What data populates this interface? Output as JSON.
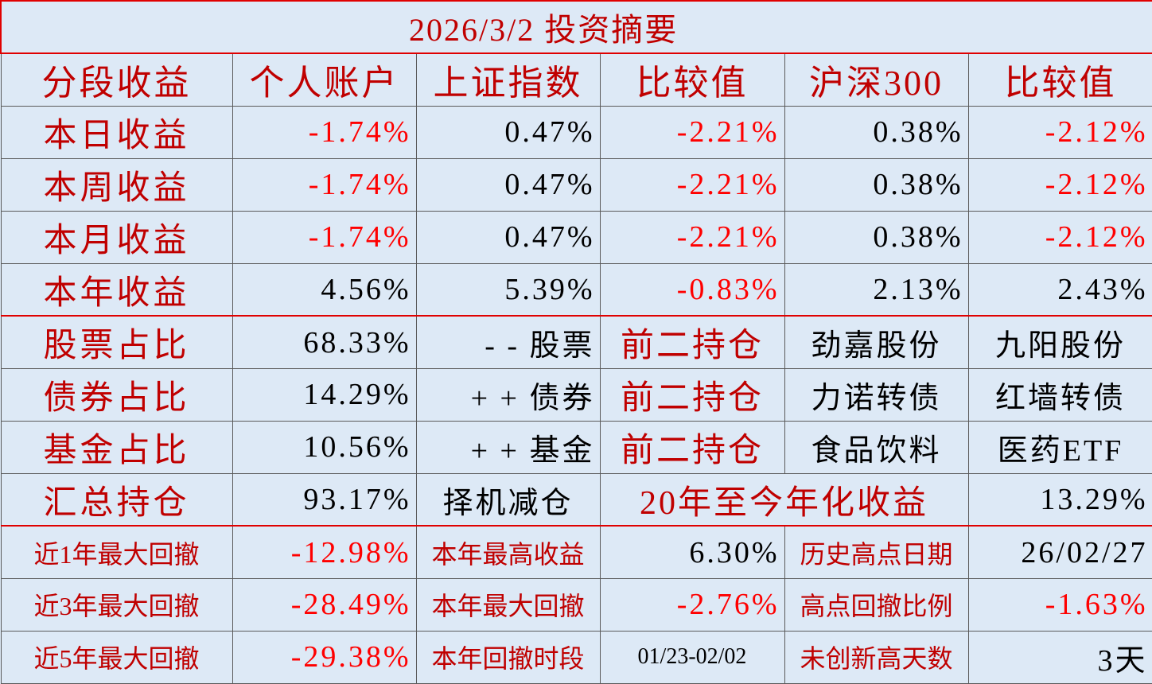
{
  "title": "2026/3/2  投资摘要",
  "table": {
    "header": [
      "分段收益",
      "个人账户",
      "上证指数",
      "比较值",
      "沪深300",
      "比较值"
    ],
    "rows": [
      [
        "本日收益",
        "-1.74%",
        "0.47%",
        "-2.21%",
        "0.38%",
        "-2.12%"
      ],
      [
        "本周收益",
        "-1.74%",
        "0.47%",
        "-2.21%",
        "0.38%",
        "-2.12%"
      ],
      [
        "本月收益",
        "-1.74%",
        "0.47%",
        "-2.21%",
        "0.38%",
        "-2.12%"
      ],
      [
        "本年收益",
        "4.56%",
        "5.39%",
        "-0.83%",
        "2.13%",
        "2.43%"
      ],
      [
        "股票占比",
        "68.33%",
        "- - 股票",
        "前二持仓",
        "劲嘉股份",
        "九阳股份"
      ],
      [
        "债券占比",
        "14.29%",
        "+ + 债券",
        "前二持仓",
        "力诺转债",
        "红墙转债"
      ],
      [
        "基金占比",
        "10.56%",
        "+ + 基金",
        "前二持仓",
        "食品饮料",
        "医药ETF"
      ],
      [
        "汇总持仓",
        "93.17%",
        "择机减仓",
        "20年至今年化收益",
        "13.29%"
      ],
      [
        "近1年最大回撤",
        "-12.98%",
        "本年最高收益",
        "6.30%",
        "历史高点日期",
        "26/02/27"
      ],
      [
        "近3年最大回撤",
        "-28.49%",
        "本年最大回撤",
        "-2.76%",
        "高点回撤比例",
        "-1.63%"
      ],
      [
        "近5年最大回撤",
        "-29.38%",
        "本年回撤时段",
        "01/23-02/02",
        "未创新高天数",
        "3天"
      ]
    ]
  }
}
